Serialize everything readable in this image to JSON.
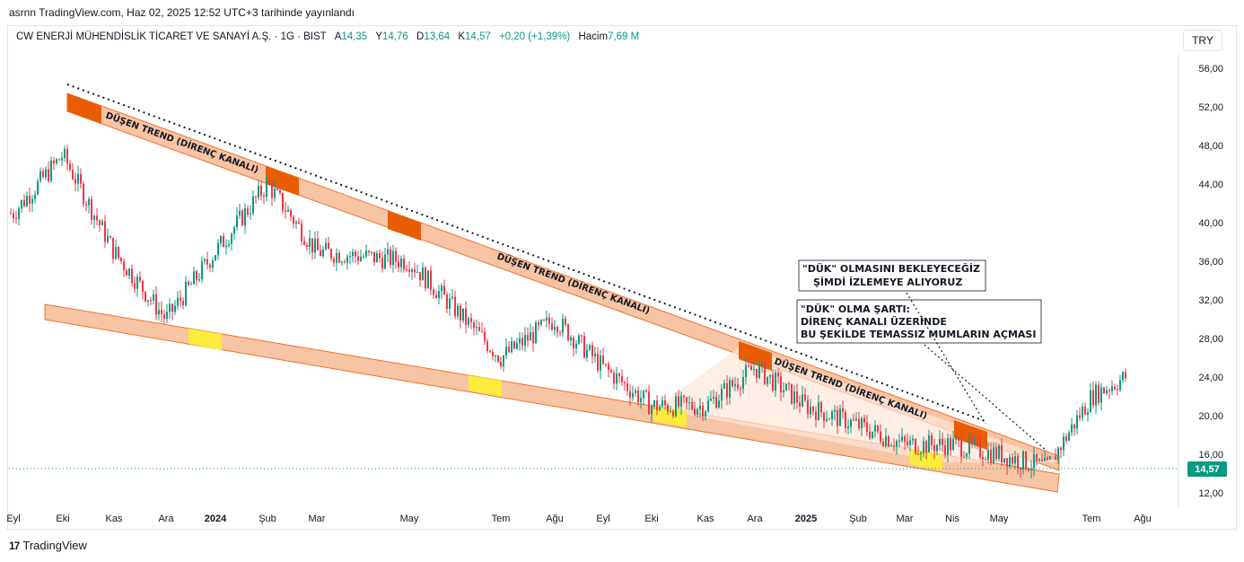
{
  "publish_line": "asrnn TradingView.com, Haz 02, 2025 12:52 UTC+3 tarihinde yayınlandı",
  "symbol": {
    "name": "CW ENERJİ MÜHENDİSLİK TİCARET VE SANAYİ A.Ş. · 1G · BIST",
    "open_label": "A",
    "open_value": "14,35",
    "high_label": "Y",
    "high_value": "14,76",
    "low_label": "D",
    "low_value": "13,64",
    "close_label": "K",
    "close_value": "14,57",
    "change": "+0,20 (+1,39%)",
    "volume_label": "Hacim",
    "volume_value": "7,69 M"
  },
  "currency_button": "TRY",
  "annotations": {
    "trend_label_1": "DÜŞEN TREND (DİRENÇ KANALI)",
    "trend_label_2": "DÜŞEN TREND (DİRENÇ KANALI)",
    "trend_label_3": "DÜŞEN TREND (DİRENÇ KANALI)",
    "note_1_line1": "\"DÜK\" OLMASINI BEKLEYECEĞİZ",
    "note_1_line2": "ŞİMDİ İZLEMEYE ALIYORUZ",
    "note_2_line1": "\"DÜK\" OLMA ŞARTI:",
    "note_2_line2": "DİRENÇ KANALI ÜZERİNDE",
    "note_2_line3": "BU ŞEKİLDE TEMASSIZ MUMLARIN AÇMASI"
  },
  "footer": {
    "logo": "17",
    "brand": "TradingView"
  },
  "colors": {
    "up": "#089981",
    "down": "#f23645",
    "channel": "#f7c4a4",
    "channel_edge": "#f1712f",
    "touch_dark": "#e85d04",
    "touch_yellow": "#ffeb3b"
  },
  "chart_data": {
    "type": "candlestick",
    "y_ticks": [
      "56,00",
      "52,00",
      "48,00",
      "44,00",
      "40,00",
      "36,00",
      "32,00",
      "28,00",
      "24,00",
      "20,00",
      "16,00",
      "12,00"
    ],
    "y_range": [
      12,
      56
    ],
    "x_labels": [
      "Eyl",
      "Eki",
      "Kas",
      "Ara",
      "2024",
      "Şub",
      "Mar",
      "May",
      "Tem",
      "Ağu",
      "Eyl",
      "Eki",
      "Kas",
      "Ara",
      "2025",
      "Şub",
      "Mar",
      "Nis",
      "May",
      "Tem",
      "Ağu"
    ],
    "last_price": "14,57",
    "approx_close_path": [
      [
        "Eyl",
        41
      ],
      [
        "Eki",
        47
      ],
      [
        "Kas",
        37
      ],
      [
        "Ara",
        30
      ],
      [
        "2024",
        37
      ],
      [
        "Şub",
        44
      ],
      [
        "Mar",
        37
      ],
      [
        "May",
        36
      ],
      [
        "Tem",
        26
      ],
      [
        "Ağu",
        30
      ],
      [
        "Eyl",
        25
      ],
      [
        "Eki",
        21
      ],
      [
        "Kas",
        21
      ],
      [
        "Ara",
        25
      ],
      [
        "2025",
        21
      ],
      [
        "Şub",
        19
      ],
      [
        "Mar",
        17
      ],
      [
        "Nis",
        17
      ],
      [
        "May",
        16
      ],
      [
        "Haz",
        14.57
      ],
      [
        "Tem",
        22
      ],
      [
        "Ağu",
        25
      ]
    ]
  }
}
